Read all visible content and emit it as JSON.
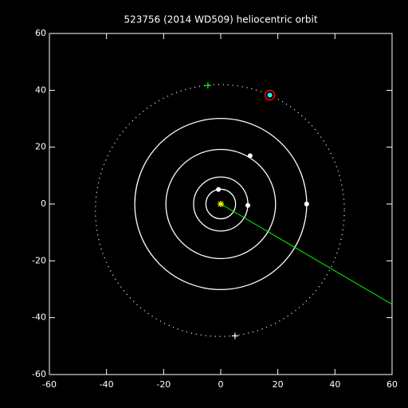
{
  "chart_data": {
    "type": "orbit",
    "title": "523756 (2014 WD509) heliocentric orbit",
    "xlim": [
      -60,
      60
    ],
    "ylim": [
      -60,
      60
    ],
    "xticks": [
      -60,
      -40,
      -20,
      0,
      20,
      40,
      60
    ],
    "yticks": [
      -60,
      -40,
      -20,
      0,
      20,
      40,
      60
    ],
    "axis_color": "#ffffff",
    "sun": {
      "x": 0,
      "y": 0,
      "color": "#ffff00"
    },
    "planet_orbits": {
      "radii": [
        5.2,
        9.5,
        19.2,
        30.1
      ],
      "color": "#ffffff"
    },
    "planets": {
      "x": [
        -0.8,
        9.5,
        10.3,
        30.1
      ],
      "y": [
        5.1,
        -0.5,
        17,
        0
      ],
      "color": "#ffffff"
    },
    "object_orbit": {
      "cx": -0.3,
      "cy": -2.3,
      "rx": 43.6,
      "ry": 44.3,
      "color": "#ffffff"
    },
    "object": {
      "x": 17.2,
      "y": 38.3,
      "color": "#00ffff",
      "ring_color": "#ff0000"
    },
    "markers": {
      "x": [
        -4.5,
        5
      ],
      "y": [
        41.7,
        -46.4
      ],
      "colors": [
        "#00ff00",
        "#ffffff"
      ]
    },
    "direction": {
      "x": [
        0,
        60
      ],
      "y": [
        0,
        -35.3
      ],
      "color": "#00ff00"
    }
  }
}
